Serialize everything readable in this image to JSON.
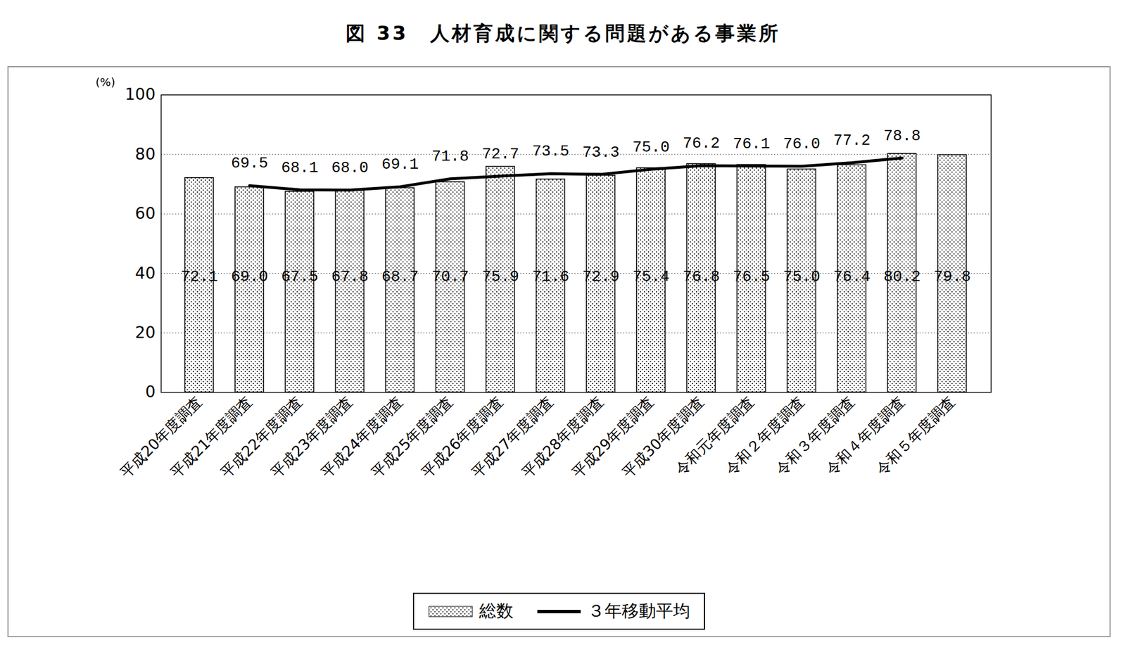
{
  "chart_data": {
    "type": "bar",
    "title": "図 33　人材育成に関する問題がある事業所",
    "y_label": "(%)",
    "categories": [
      "平成20年度調査",
      "平成21年度調査",
      "平成22年度調査",
      "平成23年度調査",
      "平成24年度調査",
      "平成25年度調査",
      "平成26年度調査",
      "平成27年度調査",
      "平成28年度調査",
      "平成29年度調査",
      "平成30年度調査",
      "令和元年度調査",
      "令和２年度調査",
      "令和３年度調査",
      "令和４年度調査",
      "令和５年度調査"
    ],
    "series": [
      {
        "name": "総数",
        "type": "bar",
        "color": "#ffffff",
        "values": [
          72.1,
          69.0,
          67.5,
          67.8,
          68.7,
          70.7,
          75.9,
          71.6,
          72.9,
          75.4,
          76.8,
          76.5,
          75.0,
          76.4,
          80.2,
          79.8
        ],
        "value_labels": [
          "72.1",
          "69.0",
          "67.5",
          "67.8",
          "68.7",
          "70.7",
          "75.9",
          "71.6",
          "72.9",
          "75.4",
          "76.8",
          "76.5",
          "75.0",
          "76.4",
          "80.2",
          "79.8"
        ]
      },
      {
        "name": "３年移動平均",
        "type": "line",
        "color": "#000000",
        "values": [
          null,
          69.5,
          68.1,
          68.0,
          69.1,
          71.8,
          72.7,
          73.5,
          73.3,
          75.0,
          76.2,
          76.1,
          76.0,
          77.2,
          78.8,
          null
        ],
        "value_labels": [
          null,
          "69.5",
          "68.1",
          "68.0",
          "69.1",
          "71.8",
          "72.7",
          "73.5",
          "73.3",
          "75.0",
          "76.2",
          "76.1",
          "76.0",
          "77.2",
          "78.8",
          null
        ]
      }
    ],
    "ylim": [
      0,
      100
    ],
    "yticks": [
      0,
      20,
      40,
      60,
      80,
      100
    ],
    "grid": true,
    "data_labels": true,
    "legend": "bottom"
  }
}
